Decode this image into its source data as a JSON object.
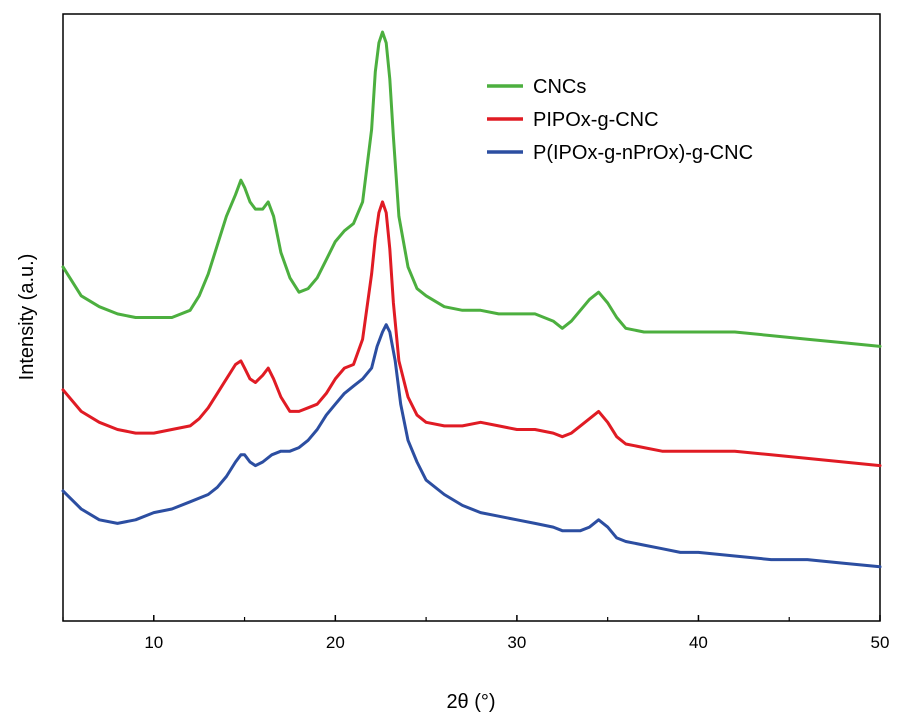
{
  "chart_data": {
    "type": "line",
    "title": "",
    "xlabel": "2θ (°)",
    "ylabel": "Intensity (a.u.)",
    "xlim": [
      5,
      50
    ],
    "ylim": [
      0,
      1.68
    ],
    "y_ticks_shown": false,
    "grid": false,
    "legend_position": "top-right",
    "x_ticks": [
      10,
      20,
      30,
      40,
      50
    ],
    "x_tick_labels": [
      "10",
      "20",
      "30",
      "40",
      "50"
    ],
    "x_minor_ticks": [
      5,
      15,
      25,
      35,
      45
    ],
    "series": [
      {
        "name": "CNCs",
        "color": "#4caf3f",
        "x": [
          5,
          6,
          7,
          8,
          9,
          10,
          11,
          12,
          12.5,
          13,
          13.5,
          14,
          14.5,
          14.8,
          15,
          15.3,
          15.6,
          16,
          16.3,
          16.6,
          17,
          17.5,
          18,
          18.5,
          19,
          19.5,
          20,
          20.5,
          21,
          21.5,
          22,
          22.2,
          22.4,
          22.6,
          22.8,
          23,
          23.2,
          23.5,
          24,
          24.5,
          25,
          26,
          27,
          28,
          29,
          30,
          31,
          32,
          32.5,
          33,
          33.5,
          34,
          34.5,
          35,
          35.5,
          36,
          37,
          38,
          39,
          40,
          42,
          44,
          46,
          48,
          50
        ],
        "y": [
          0.98,
          0.9,
          0.87,
          0.85,
          0.84,
          0.84,
          0.84,
          0.86,
          0.9,
          0.96,
          1.04,
          1.12,
          1.18,
          1.22,
          1.2,
          1.16,
          1.14,
          1.14,
          1.16,
          1.12,
          1.02,
          0.95,
          0.91,
          0.92,
          0.95,
          1,
          1.05,
          1.08,
          1.1,
          1.16,
          1.36,
          1.52,
          1.6,
          1.63,
          1.6,
          1.5,
          1.34,
          1.12,
          0.98,
          0.92,
          0.9,
          0.87,
          0.86,
          0.86,
          0.85,
          0.85,
          0.85,
          0.83,
          0.81,
          0.83,
          0.86,
          0.89,
          0.91,
          0.88,
          0.84,
          0.81,
          0.8,
          0.8,
          0.8,
          0.8,
          0.8,
          0.79,
          0.78,
          0.77,
          0.76
        ]
      },
      {
        "name": "PIPOx-g-CNC",
        "color": "#e01b24",
        "x": [
          5,
          6,
          7,
          8,
          9,
          10,
          11,
          12,
          12.5,
          13,
          13.5,
          14,
          14.5,
          14.8,
          15,
          15.3,
          15.6,
          16,
          16.3,
          16.6,
          17,
          17.5,
          18,
          18.5,
          19,
          19.5,
          20,
          20.5,
          21,
          21.5,
          22,
          22.2,
          22.4,
          22.6,
          22.8,
          23,
          23.2,
          23.5,
          24,
          24.5,
          25,
          26,
          27,
          28,
          29,
          30,
          31,
          32,
          32.5,
          33,
          33.5,
          34,
          34.5,
          35,
          35.5,
          36,
          37,
          38,
          39,
          40,
          42,
          44,
          46,
          48,
          50
        ],
        "y": [
          0.64,
          0.58,
          0.55,
          0.53,
          0.52,
          0.52,
          0.53,
          0.54,
          0.56,
          0.59,
          0.63,
          0.67,
          0.71,
          0.72,
          0.7,
          0.67,
          0.66,
          0.68,
          0.7,
          0.67,
          0.62,
          0.58,
          0.58,
          0.59,
          0.6,
          0.63,
          0.67,
          0.7,
          0.71,
          0.78,
          0.96,
          1.06,
          1.13,
          1.16,
          1.13,
          1.03,
          0.88,
          0.72,
          0.62,
          0.57,
          0.55,
          0.54,
          0.54,
          0.55,
          0.54,
          0.53,
          0.53,
          0.52,
          0.51,
          0.52,
          0.54,
          0.56,
          0.58,
          0.55,
          0.51,
          0.49,
          0.48,
          0.47,
          0.47,
          0.47,
          0.47,
          0.46,
          0.45,
          0.44,
          0.43
        ]
      },
      {
        "name": "P(IPOx-g-nPrOx)-g-CNC",
        "color": "#2c4ea1",
        "x": [
          5,
          6,
          7,
          8,
          9,
          10,
          11,
          12,
          13,
          13.5,
          14,
          14.5,
          14.8,
          15,
          15.3,
          15.6,
          16,
          16.5,
          17,
          17.5,
          18,
          18.5,
          19,
          19.5,
          20,
          20.5,
          21,
          21.5,
          22,
          22.3,
          22.6,
          22.8,
          23,
          23.3,
          23.6,
          24,
          24.5,
          25,
          26,
          27,
          28,
          29,
          30,
          31,
          32,
          32.5,
          33,
          33.5,
          34,
          34.5,
          35,
          35.5,
          36,
          37,
          38,
          39,
          40,
          42,
          44,
          46,
          48,
          50
        ],
        "y": [
          0.36,
          0.31,
          0.28,
          0.27,
          0.28,
          0.3,
          0.31,
          0.33,
          0.35,
          0.37,
          0.4,
          0.44,
          0.46,
          0.46,
          0.44,
          0.43,
          0.44,
          0.46,
          0.47,
          0.47,
          0.48,
          0.5,
          0.53,
          0.57,
          0.6,
          0.63,
          0.65,
          0.67,
          0.7,
          0.76,
          0.8,
          0.82,
          0.8,
          0.72,
          0.6,
          0.5,
          0.44,
          0.39,
          0.35,
          0.32,
          0.3,
          0.29,
          0.28,
          0.27,
          0.26,
          0.25,
          0.25,
          0.25,
          0.26,
          0.28,
          0.26,
          0.23,
          0.22,
          0.21,
          0.2,
          0.19,
          0.19,
          0.18,
          0.17,
          0.17,
          0.16,
          0.15
        ]
      }
    ]
  }
}
